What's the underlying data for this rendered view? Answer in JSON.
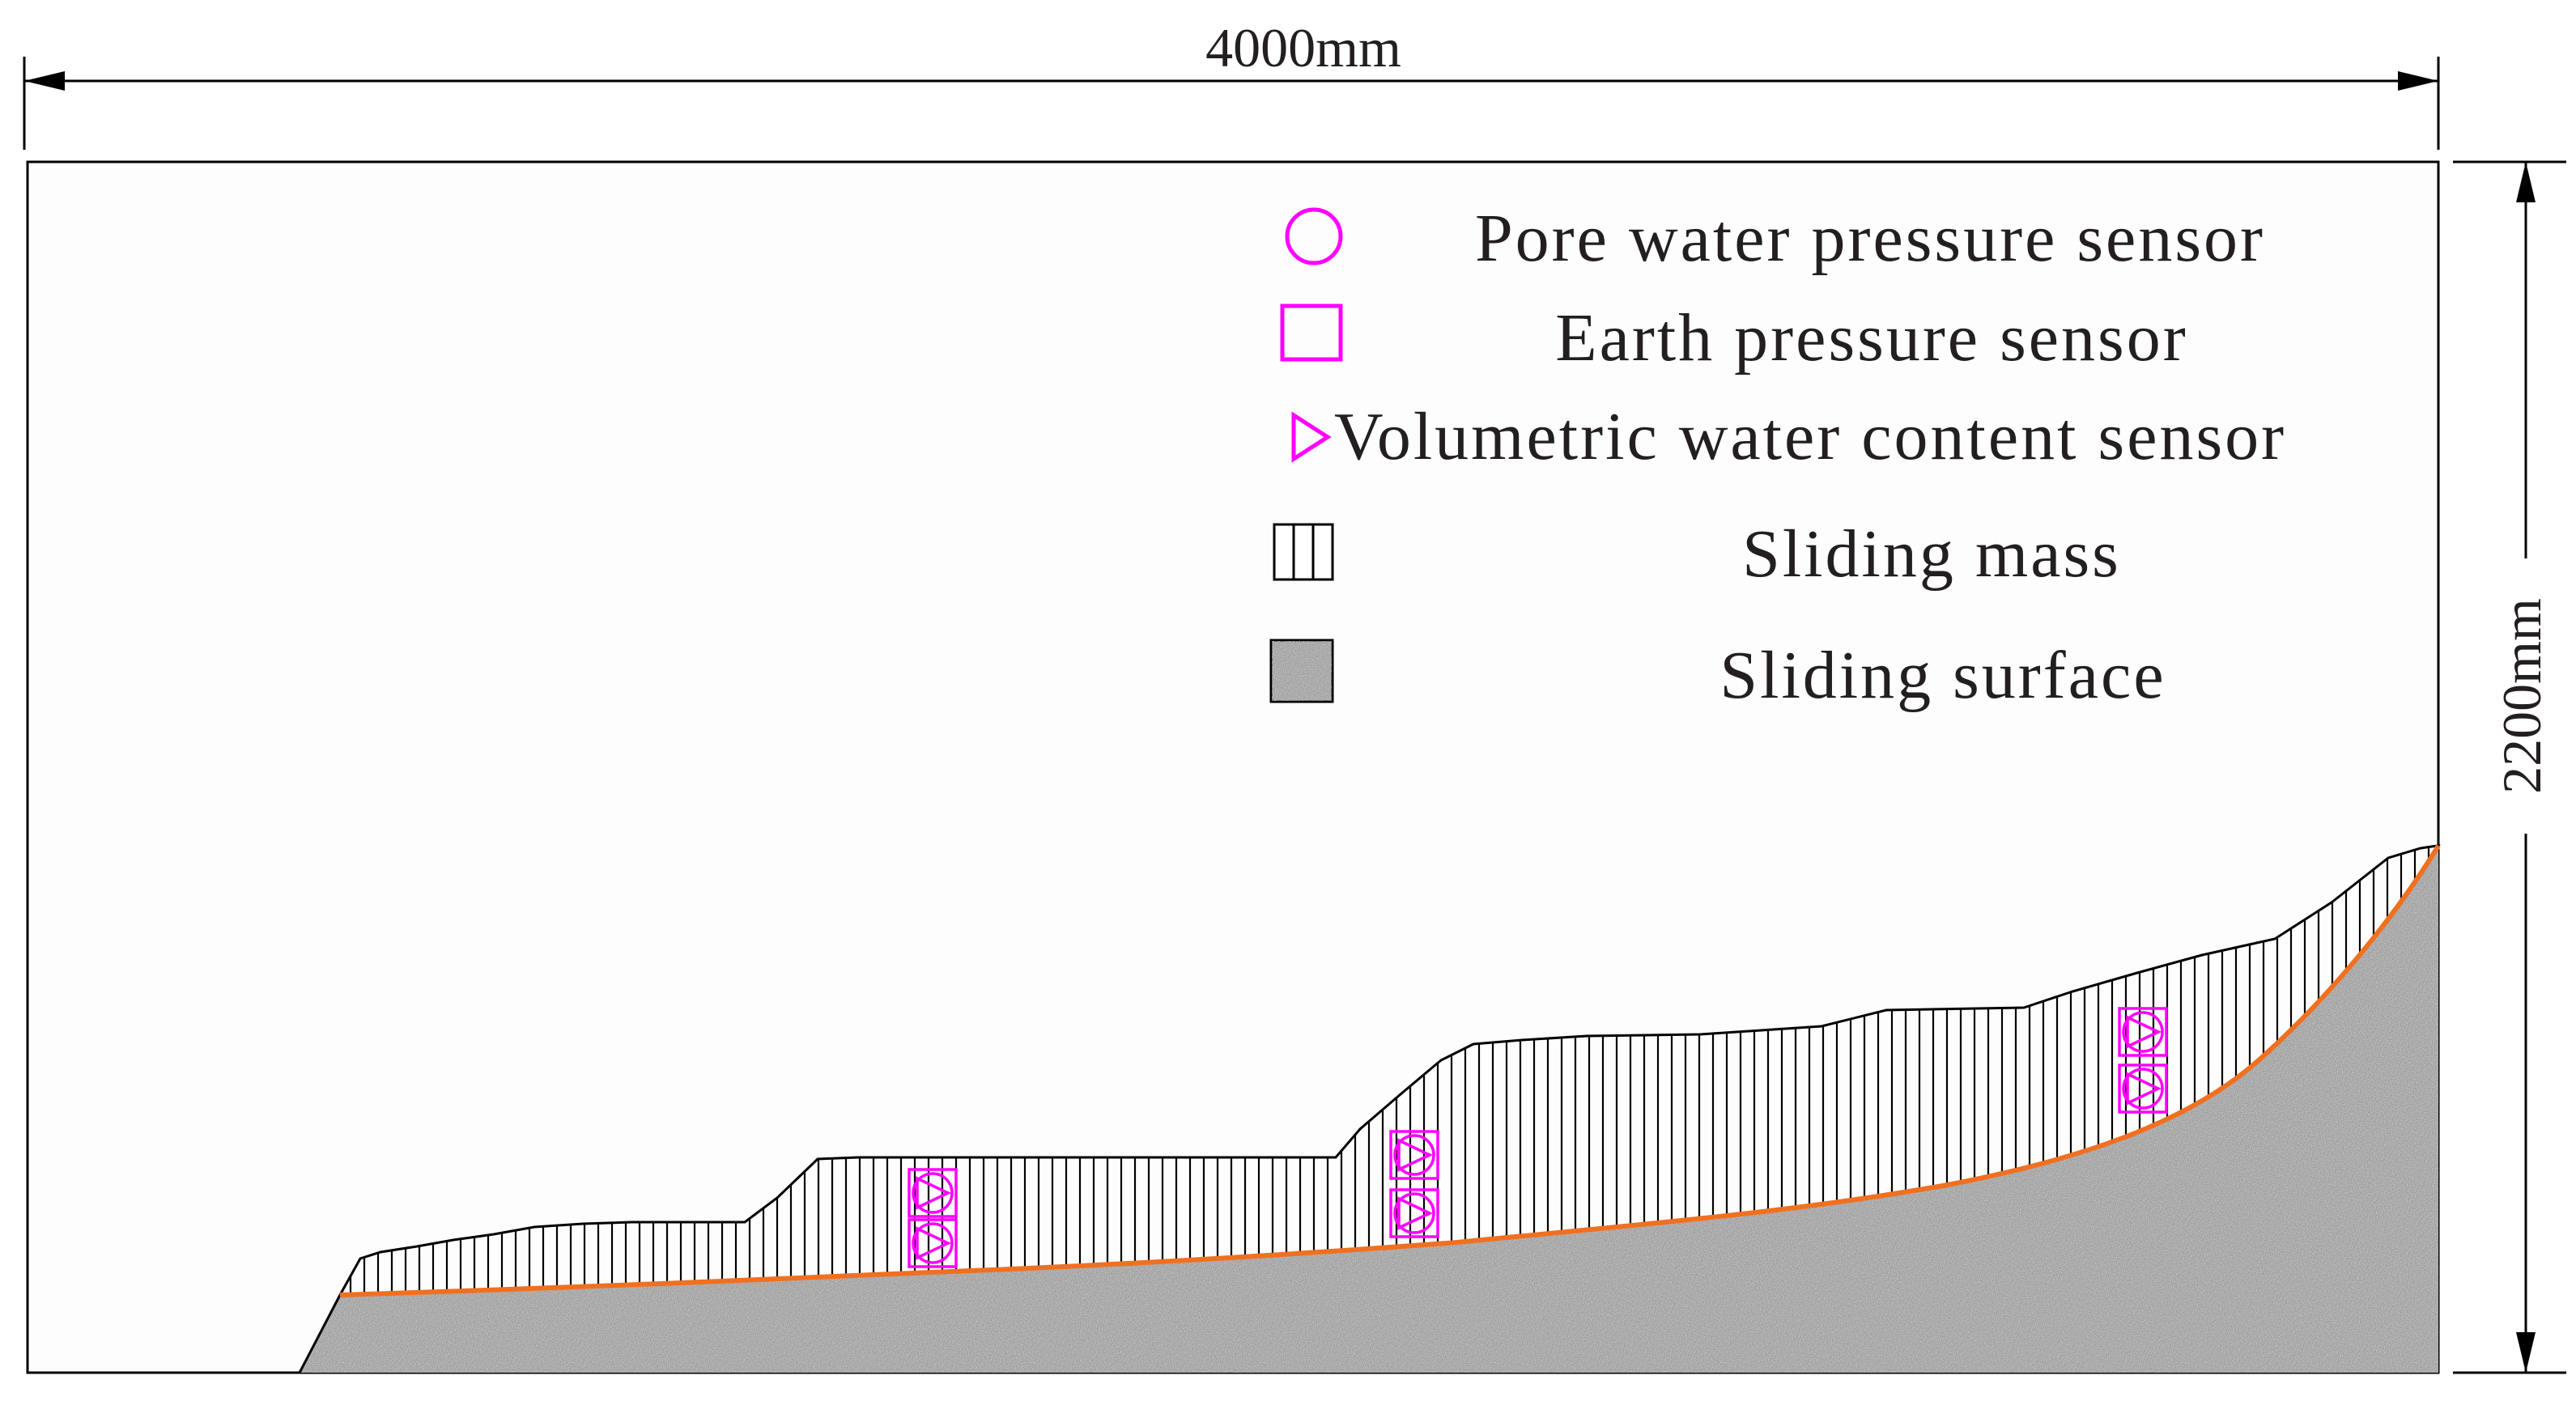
{
  "dimensions": {
    "width_label": "4000mm",
    "height_label": "2200mm"
  },
  "legend": {
    "pore_water_pressure_sensor": "Pore water pressure sensor",
    "earth_pressure_sensor": "Earth pressure sensor",
    "volumetric_water_content_sensor": "Volumetric water content sensor",
    "sliding_mass": "Sliding mass",
    "sliding_surface": "Sliding surface"
  },
  "colors": {
    "sensor": "#ff00ff",
    "sliding_surface_line": "#f07020",
    "bedrock": "#9a9a9a",
    "outline": "#000000"
  }
}
